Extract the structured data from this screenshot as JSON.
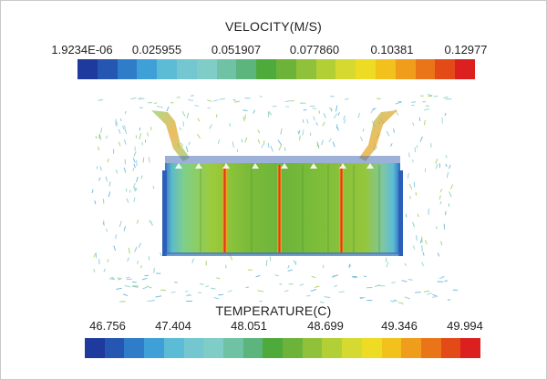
{
  "velocity_legend": {
    "title": "VELOCITY(M/S)",
    "ticks": [
      "1.9234E-06",
      "0.025955",
      "0.051907",
      "0.077860",
      "0.10381",
      "0.12977"
    ]
  },
  "temperature_legend": {
    "title": "TEMPERATURE(C)",
    "ticks": [
      "46.756",
      "47.404",
      "48.051",
      "48.699",
      "49.346",
      "49.994"
    ]
  },
  "colormap": [
    "#1f3a9e",
    "#2456b2",
    "#2f7cc8",
    "#3ea0d6",
    "#5cbcd6",
    "#74c7d0",
    "#7fcdc6",
    "#6fc3a4",
    "#5bb57c",
    "#4faa3c",
    "#6db33a",
    "#8fc23a",
    "#b3cf36",
    "#d6d92f",
    "#eddc23",
    "#f2c11c",
    "#ef9d1a",
    "#ea7418",
    "#e34a17",
    "#dc1f1f"
  ]
}
